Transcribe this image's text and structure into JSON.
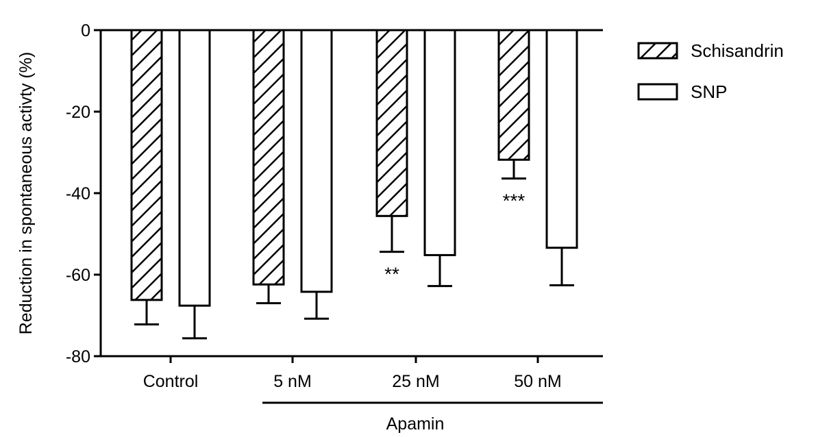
{
  "chart_data": {
    "type": "bar",
    "title": "",
    "xlabel": "",
    "ylabel": "Reduction in spontaneous activty (%)",
    "ylim": [
      -80,
      0
    ],
    "yticks": [
      0,
      -20,
      -40,
      -60,
      -80
    ],
    "ytick_labels": [
      "0",
      "-20",
      "-40",
      "-60",
      "-80"
    ],
    "categories": [
      "Control",
      "5 nM",
      "25 nM",
      "50 nM"
    ],
    "group_label": "Apamin",
    "grid": false,
    "legend_position": "top-right",
    "series": [
      {
        "name": "Schisandrin",
        "pattern": "diagonal-hatch",
        "values": [
          -66.2,
          -62.4,
          -45.6,
          -31.8
        ],
        "errors": [
          6.0,
          4.6,
          8.8,
          4.6
        ],
        "annotations": [
          "",
          "",
          "**",
          "***"
        ]
      },
      {
        "name": "SNP",
        "pattern": "open",
        "values": [
          -67.6,
          -64.2,
          -55.2,
          -53.4
        ],
        "errors": [
          8.0,
          6.6,
          7.6,
          9.2
        ],
        "annotations": [
          "",
          "",
          "",
          ""
        ]
      }
    ],
    "colors": {
      "stroke": "#000000",
      "fill": "#ffffff"
    }
  }
}
